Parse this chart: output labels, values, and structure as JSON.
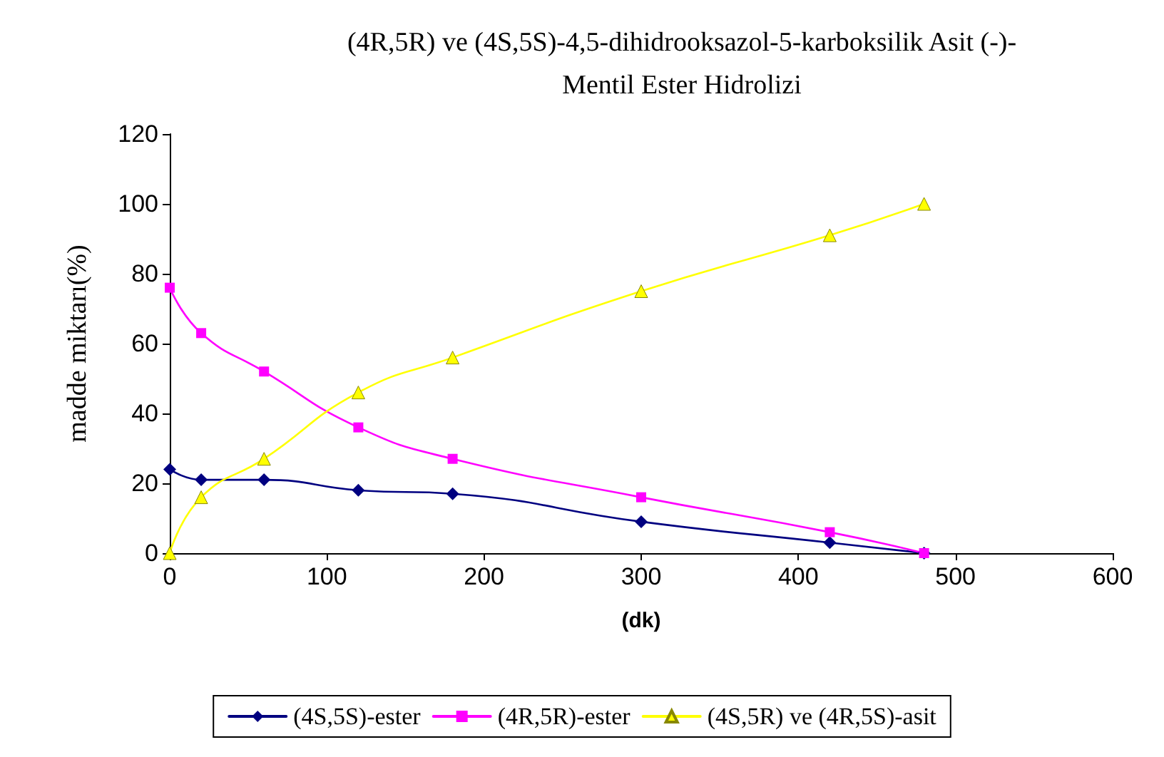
{
  "chart_data": {
    "type": "line",
    "title": "(4R,5R) ve (4S,5S)-4,5-dihidrooksazol-5-karboksilik Asit (-)-\nMentil Ester Hidrolizi",
    "xlabel": "(dk)",
    "ylabel": "madde miktarı(%)",
    "x": [
      0,
      20,
      60,
      120,
      180,
      300,
      420,
      480
    ],
    "series": [
      {
        "name": "(4S,5S)-ester",
        "color": "#000080",
        "marker": "diamond",
        "values": [
          24,
          21,
          21,
          18,
          17,
          9,
          3,
          0
        ]
      },
      {
        "name": "(4R,5R)-ester",
        "color": "#ff00ff",
        "marker": "square",
        "values": [
          76,
          63,
          52,
          36,
          27,
          16,
          6,
          0
        ]
      },
      {
        "name": "(4S,5R) ve (4R,5S)-asit",
        "color": "#ffff00",
        "marker": "triangle",
        "values": [
          0,
          16,
          27,
          46,
          56,
          75,
          91,
          100
        ]
      }
    ],
    "xlim": [
      0,
      600
    ],
    "xticks": [
      0,
      100,
      200,
      300,
      400,
      500,
      600
    ],
    "ylim": [
      0,
      120
    ],
    "yticks": [
      0,
      20,
      40,
      60,
      80,
      100,
      120
    ],
    "grid": false,
    "legend": "bottom"
  }
}
